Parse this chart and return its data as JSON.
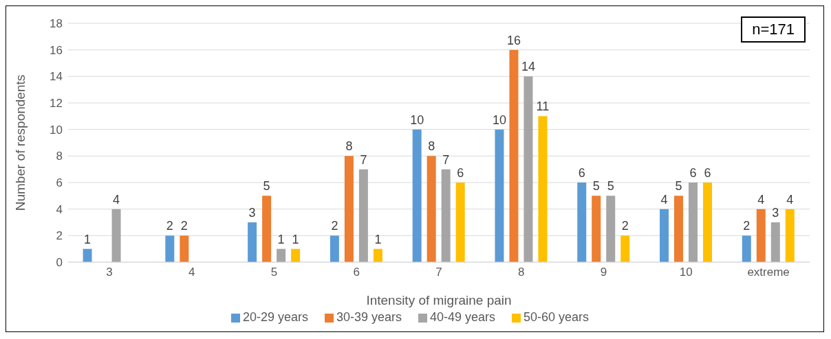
{
  "chart_data": {
    "type": "bar",
    "xlabel": "Intensity of migraine pain",
    "ylabel": "Number of respondents",
    "categories": [
      "3",
      "4",
      "5",
      "6",
      "7",
      "8",
      "9",
      "10",
      "extreme"
    ],
    "series": [
      {
        "name": "20-29 years",
        "color": "#5b9bd5",
        "values": [
          1,
          2,
          3,
          2,
          10,
          10,
          6,
          4,
          2
        ]
      },
      {
        "name": "30-39 years",
        "color": "#ed7d31",
        "values": [
          null,
          2,
          5,
          8,
          8,
          16,
          5,
          5,
          4
        ]
      },
      {
        "name": "40-49 years",
        "color": "#a5a5a5",
        "values": [
          4,
          null,
          1,
          7,
          7,
          14,
          5,
          6,
          3
        ]
      },
      {
        "name": "50-60 years",
        "color": "#ffc000",
        "values": [
          null,
          null,
          1,
          1,
          6,
          11,
          2,
          6,
          4
        ]
      }
    ],
    "ylim": [
      0,
      18
    ],
    "yticks": [
      0,
      2,
      4,
      6,
      8,
      10,
      12,
      14,
      16,
      18
    ],
    "grid": "y",
    "legend": "bottom",
    "data_labels": true,
    "annotations": [
      "n=171"
    ]
  }
}
